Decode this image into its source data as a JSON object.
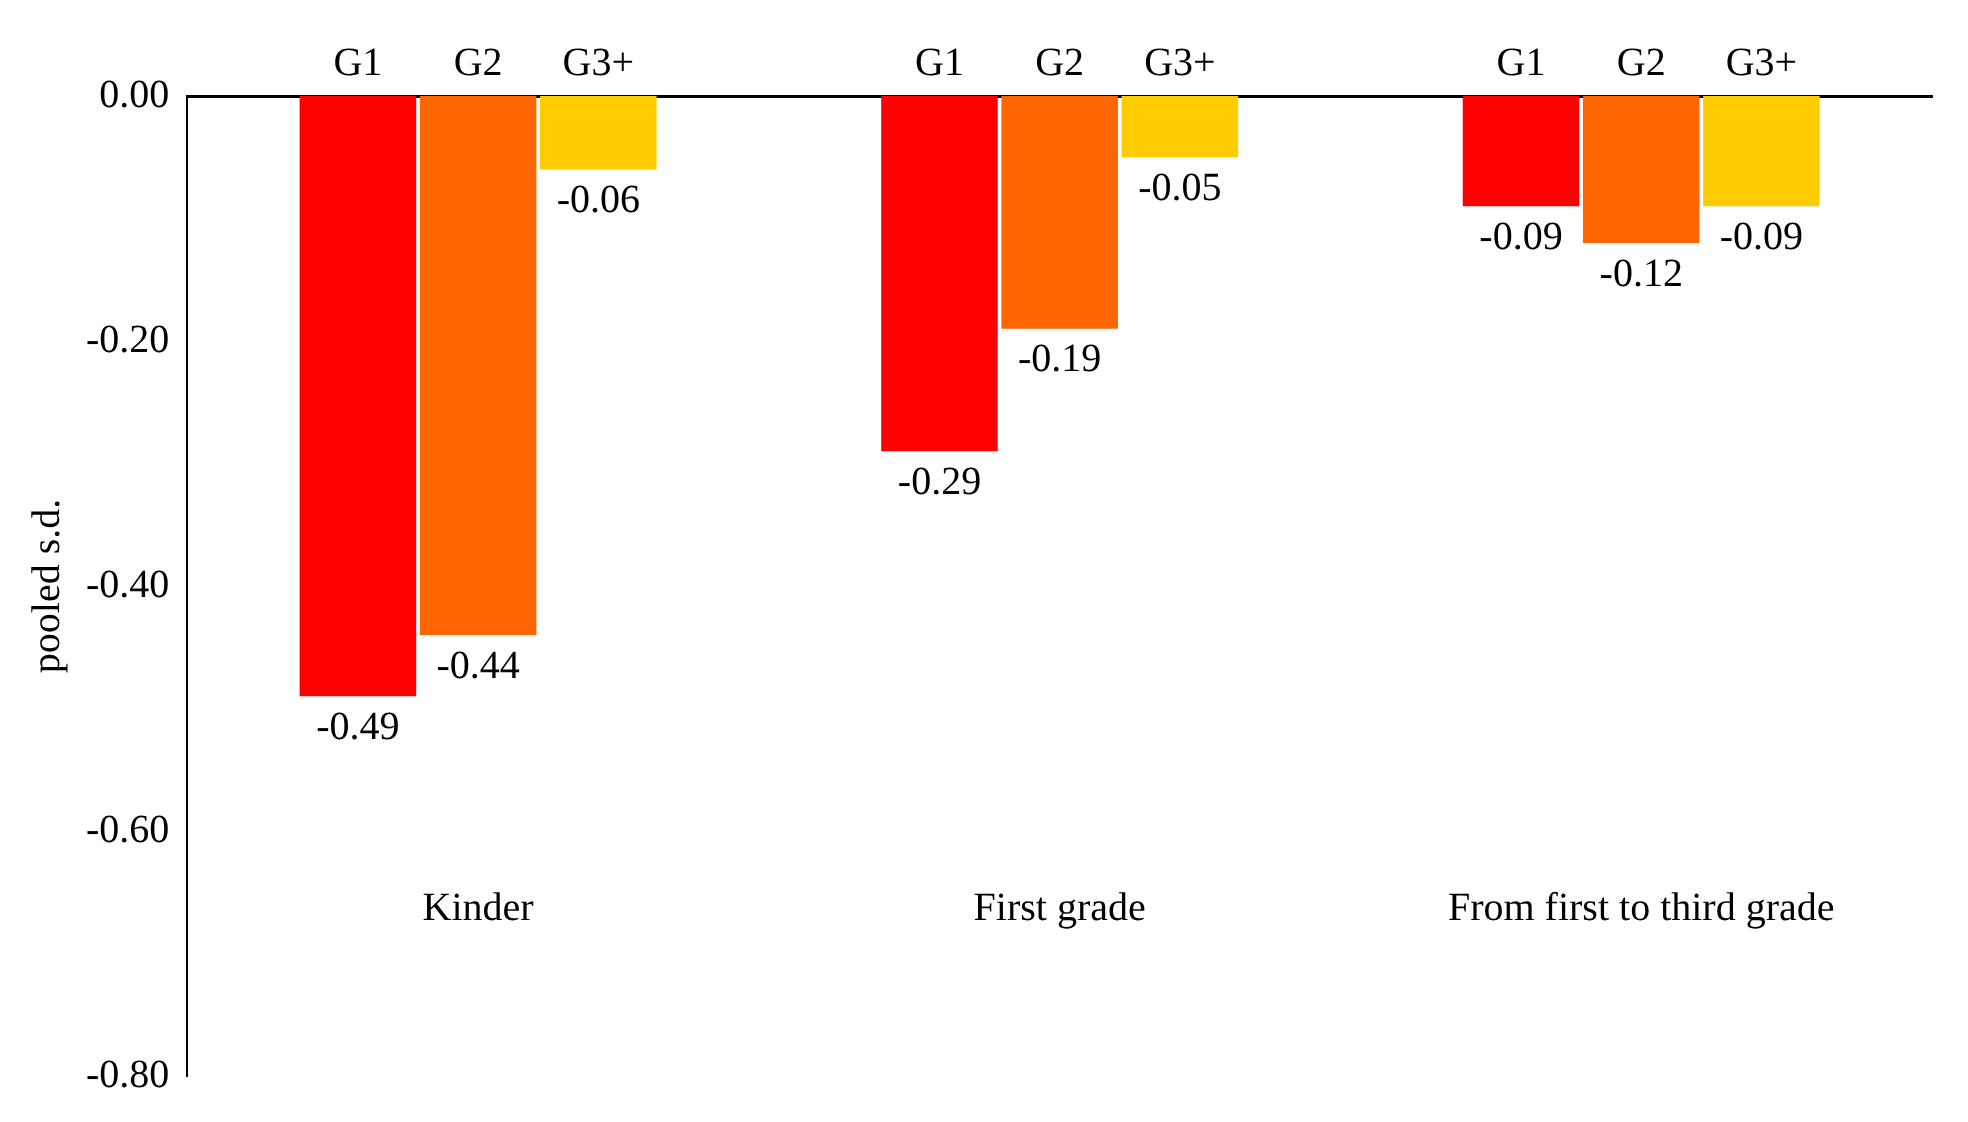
{
  "chart_data": {
    "type": "bar",
    "ylabel": "pooled s.d.",
    "categories": [
      "Kinder",
      "First grade",
      "From first to third grade"
    ],
    "series": [
      {
        "name": "G1",
        "color": "#ff0000",
        "values": [
          -0.49,
          -0.29,
          -0.09
        ]
      },
      {
        "name": "G2",
        "color": "#ff6600",
        "values": [
          -0.44,
          -0.19,
          -0.12
        ]
      },
      {
        "name": "G3+",
        "color": "#ffcc00",
        "values": [
          -0.06,
          -0.05,
          -0.09
        ]
      }
    ],
    "ylim": [
      -0.8,
      0
    ],
    "yticks": [
      {
        "value": 0,
        "label": "0.00"
      },
      {
        "value": -0.2,
        "label": "-0.20"
      },
      {
        "value": -0.4,
        "label": "-0.40"
      },
      {
        "value": -0.6,
        "label": "-0.60"
      },
      {
        "value": -0.8,
        "label": "-0.80"
      }
    ],
    "grid": false,
    "legend": false,
    "data_labels": true
  }
}
